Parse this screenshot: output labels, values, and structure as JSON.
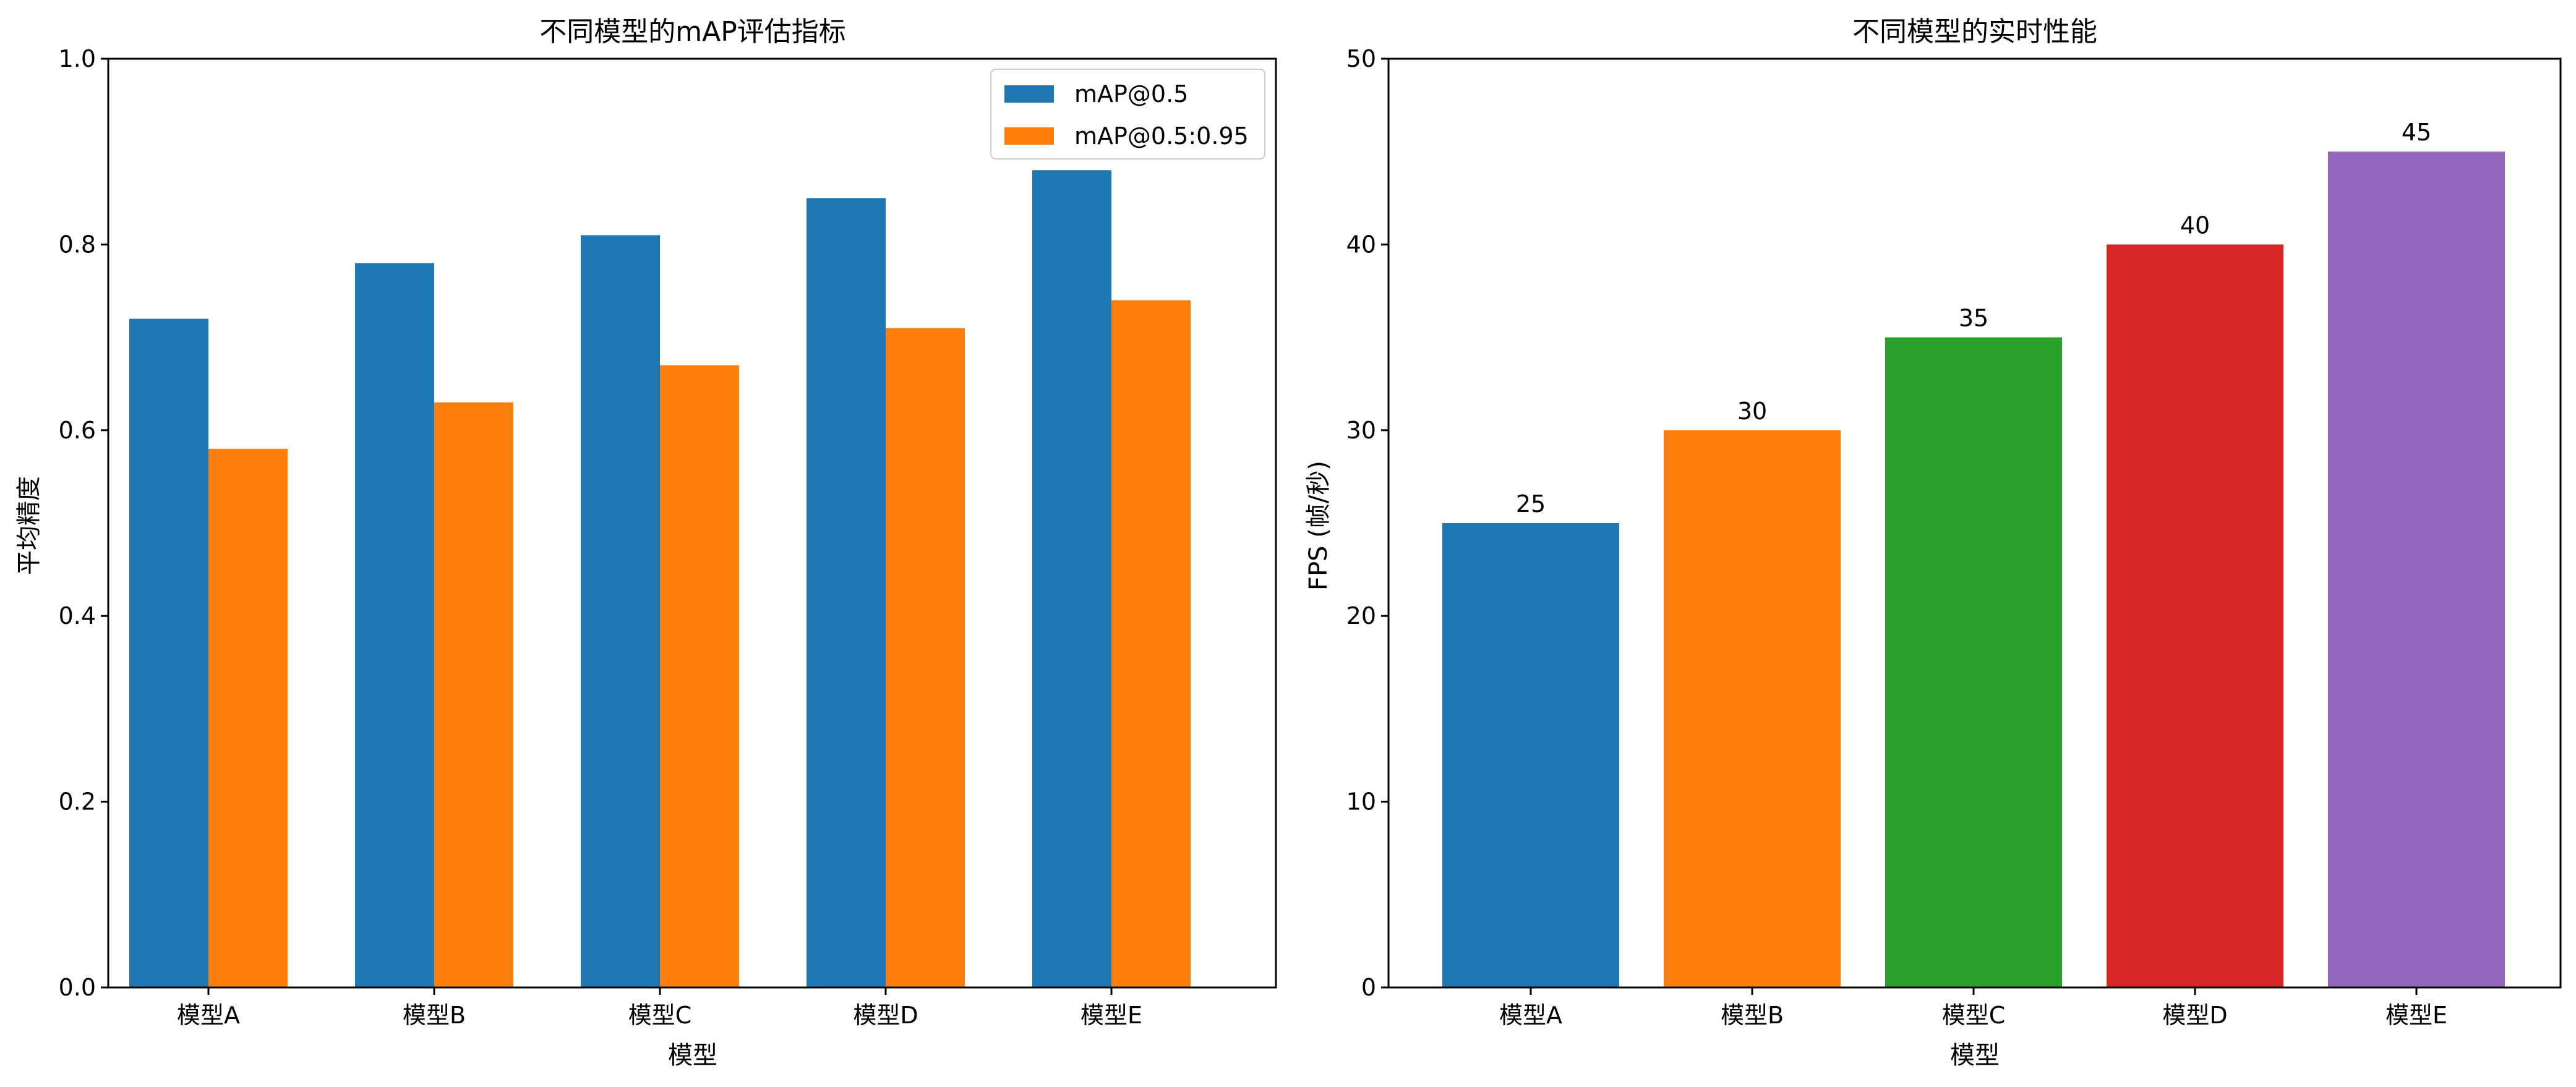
{
  "chart_data": [
    {
      "type": "bar",
      "title": "不同模型的mAP评估指标",
      "xlabel": "模型",
      "ylabel": "平均精度",
      "categories": [
        "模型A",
        "模型B",
        "模型C",
        "模型D",
        "模型E"
      ],
      "ylim": [
        0,
        1.0
      ],
      "yticks": [
        "0.0",
        "0.2",
        "0.4",
        "0.6",
        "0.8",
        "1.0"
      ],
      "grid": false,
      "legend_position": "top-right",
      "series": [
        {
          "name": "mAP@0.5",
          "color": "#1f77b4",
          "values": [
            0.72,
            0.78,
            0.81,
            0.85,
            0.88
          ]
        },
        {
          "name": "mAP@0.5:0.95",
          "color": "#ff7f0e",
          "values": [
            0.58,
            0.63,
            0.67,
            0.71,
            0.74
          ]
        }
      ]
    },
    {
      "type": "bar",
      "title": "不同模型的实时性能",
      "xlabel": "模型",
      "ylabel": "FPS (帧/秒)",
      "categories": [
        "模型A",
        "模型B",
        "模型C",
        "模型D",
        "模型E"
      ],
      "ylim": [
        0,
        50
      ],
      "yticks": [
        "0",
        "10",
        "20",
        "30",
        "40",
        "50"
      ],
      "grid": false,
      "values": [
        25,
        30,
        35,
        40,
        45
      ],
      "data_labels": [
        "25",
        "30",
        "35",
        "40",
        "45"
      ],
      "colors": [
        "#1f77b4",
        "#ff7f0e",
        "#2ca02c",
        "#d62728",
        "#9467bd"
      ]
    }
  ]
}
